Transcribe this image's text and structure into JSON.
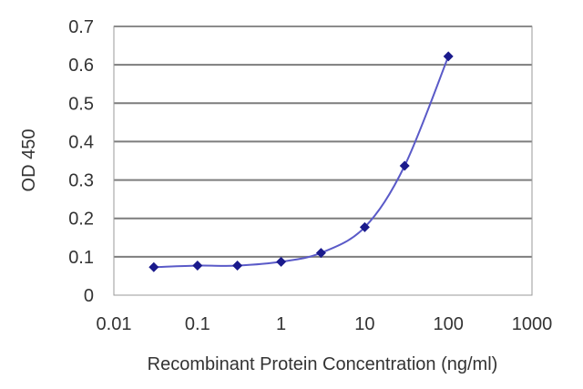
{
  "chart_data": {
    "type": "line",
    "title": "",
    "xlabel": "Recombinant Protein Concentration (ng/ml)",
    "ylabel": "OD 450",
    "x_scale": "log",
    "xlim": [
      0.01,
      1000
    ],
    "ylim": [
      0,
      0.7
    ],
    "x_ticks": [
      0.01,
      0.1,
      1,
      10,
      100,
      1000
    ],
    "x_tick_labels": [
      "0.01",
      "0.1",
      "1",
      "10",
      "100",
      "1000"
    ],
    "y_ticks": [
      0,
      0.1,
      0.2,
      0.3,
      0.4,
      0.5,
      0.6,
      0.7
    ],
    "y_tick_labels": [
      "0",
      "0.1",
      "0.2",
      "0.3",
      "0.4",
      "0.5",
      "0.6",
      "0.7"
    ],
    "grid": "horizontal",
    "legend": "none",
    "series": [
      {
        "marker": "diamond",
        "color": "#1a1a8c",
        "line_color": "#5a5ac8",
        "x": [
          0.03,
          0.1,
          0.3,
          1,
          3,
          10,
          30,
          100
        ],
        "y": [
          0.073,
          0.077,
          0.077,
          0.087,
          0.11,
          0.177,
          0.337,
          0.622
        ]
      }
    ]
  }
}
